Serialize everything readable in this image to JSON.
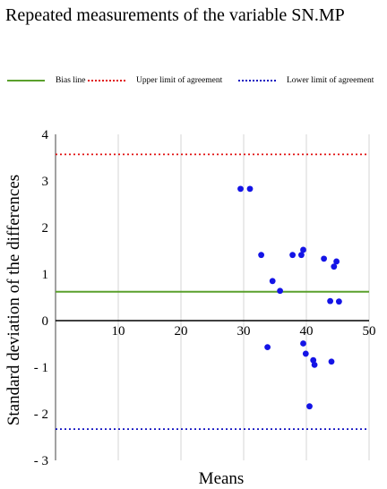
{
  "chart_data": {
    "type": "scatter",
    "title": "Repeated measurements of the variable SN.MP",
    "xlabel": "Means",
    "ylabel": "Standard deviation of the differences",
    "xlim": [
      0,
      50
    ],
    "ylim": [
      -3,
      4
    ],
    "x_ticks": [
      "10",
      "20",
      "30",
      "40",
      "50"
    ],
    "y_ticks": [
      {
        "value": 4,
        "label": "4"
      },
      {
        "value": 3,
        "label": "3"
      },
      {
        "value": 2,
        "label": "2"
      },
      {
        "value": 1,
        "label": "1"
      },
      {
        "value": 0,
        "label": "0"
      },
      {
        "value": -1,
        "label": "- 1"
      },
      {
        "value": -2,
        "label": "- 2"
      },
      {
        "value": -3,
        "label": "- 3"
      }
    ],
    "grid": "vertical",
    "legend_position": "top",
    "legend": [
      {
        "label": "Bias line",
        "style": "solid",
        "color": "#5aa02c"
      },
      {
        "label": "Upper limit of agreement",
        "style": "dotted",
        "color": "#e01010"
      },
      {
        "label": "Lower limit of agreement",
        "style": "dotted",
        "color": "#1010c0"
      }
    ],
    "bias": 0.62,
    "upper_limit": 3.57,
    "lower_limit": -2.33,
    "point_color": "#1414e6",
    "points": [
      {
        "x": 29.5,
        "y": 2.83
      },
      {
        "x": 31.0,
        "y": 2.83
      },
      {
        "x": 32.8,
        "y": 1.41
      },
      {
        "x": 34.6,
        "y": 0.85
      },
      {
        "x": 35.8,
        "y": 0.64
      },
      {
        "x": 33.8,
        "y": -0.57
      },
      {
        "x": 37.8,
        "y": 1.41
      },
      {
        "x": 39.2,
        "y": 1.41
      },
      {
        "x": 39.5,
        "y": 1.52
      },
      {
        "x": 39.5,
        "y": -0.49
      },
      {
        "x": 39.9,
        "y": -0.71
      },
      {
        "x": 40.5,
        "y": -1.84
      },
      {
        "x": 41.1,
        "y": -0.85
      },
      {
        "x": 41.3,
        "y": -0.95
      },
      {
        "x": 42.8,
        "y": 1.33
      },
      {
        "x": 43.8,
        "y": 0.42
      },
      {
        "x": 44.0,
        "y": -0.88
      },
      {
        "x": 44.4,
        "y": 1.16
      },
      {
        "x": 44.8,
        "y": 1.27
      },
      {
        "x": 45.2,
        "y": 0.41
      }
    ]
  }
}
